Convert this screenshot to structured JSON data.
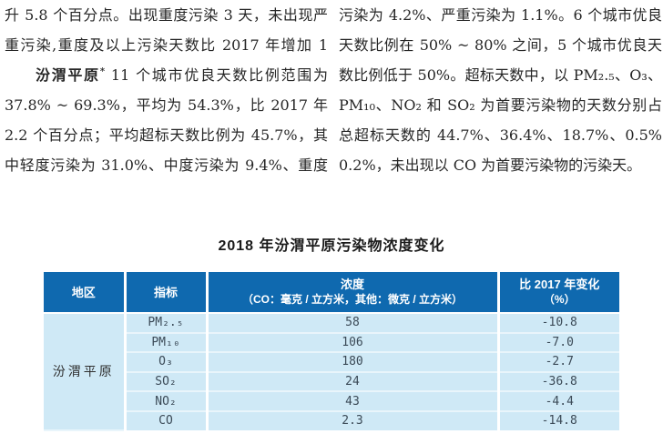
{
  "text": {
    "left": {
      "line1": "升 5.8 个百分点。出现重度污染 3 天，未出现严",
      "line2": "重污染,重度及以上污染天数比 2017 年增加 1 天。",
      "line3_bold": "汾渭平原",
      "line3_sup": "*",
      "line3_rest": " 11 个城市优良天数比例范围为",
      "line4": "37.8% ~ 69.3%，平均为 54.3%，比 2017 年上升",
      "line5": "2.2 个百分点；平均超标天数比例为 45.7%，其",
      "line6": "中轻度污染为 31.0%、中度污染为 9.4%、重度"
    },
    "right": {
      "line1": "污染为 4.2%、严重污染为 1.1%。6 个城市优良",
      "line2": "天数比例在 50% ~ 80% 之间，5 个城市优良天",
      "line3": "数比例低于 50%。超标天数中，以 PM₂.₅、O₃、",
      "line4": "PM₁₀、NO₂ 和 SO₂ 为首要污染物的天数分别占",
      "line5": "总超标天数的 44.7%、36.4%、18.7%、0.5% 和",
      "line6": "0.2%，未出现以 CO 为首要污染物的污染天。"
    }
  },
  "table": {
    "title": "2018 年汾渭平原污染物浓度变化",
    "col_region": "地区",
    "col_indicator": "指标",
    "col_concentration_line1": "浓度",
    "col_concentration_line2": "（CO：毫克 / 立方米，其他：微克 / 立方米）",
    "col_change_line1": "比 2017 年变化",
    "col_change_line2": "（%）",
    "region": "汾渭平原",
    "rows": [
      {
        "indicator": "PM₂.₅",
        "concentration": "58",
        "change": "-10.8"
      },
      {
        "indicator": "PM₁₀",
        "concentration": "106",
        "change": "-7.0"
      },
      {
        "indicator": "O₃",
        "concentration": "180",
        "change": "-2.7"
      },
      {
        "indicator": "SO₂",
        "concentration": "24",
        "change": "-36.8"
      },
      {
        "indicator": "NO₂",
        "concentration": "43",
        "change": "-4.4"
      },
      {
        "indicator": "CO",
        "concentration": "2.3",
        "change": "-14.8"
      }
    ]
  },
  "colors": {
    "table_header_bg": "#0f69af",
    "table_row_bg": "#cfe9f6",
    "table_header_text": "#ffffff",
    "body_text": "#262626",
    "row_separator": "#e9f5fb"
  }
}
